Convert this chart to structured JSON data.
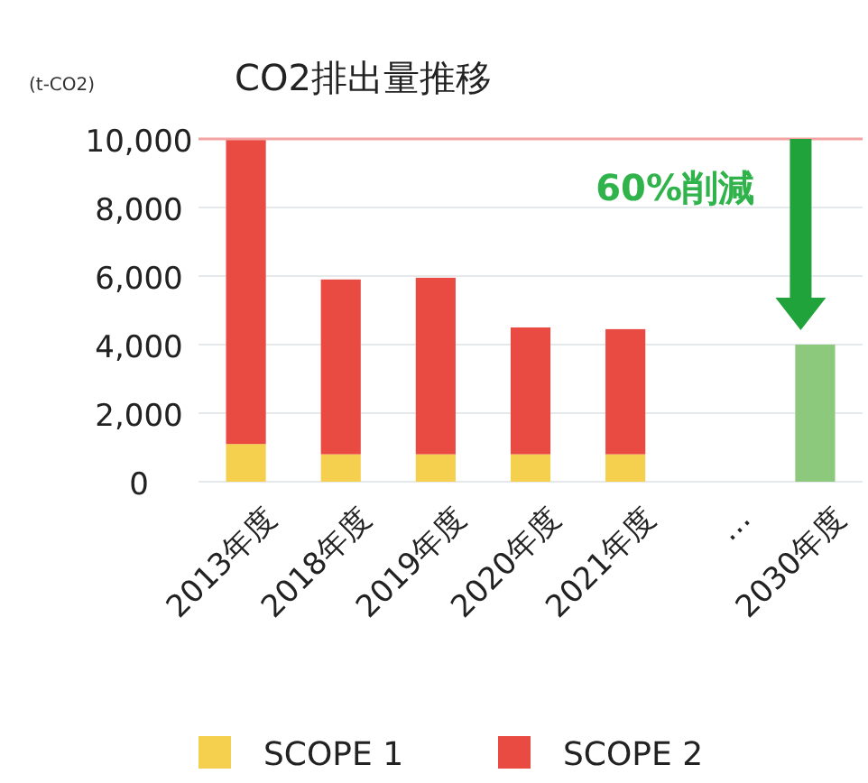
{
  "chart_data": {
    "type": "bar",
    "title": "CO2排出量推移",
    "ylabel": "(t-CO2)",
    "categories": [
      "2013年度",
      "2018年度",
      "2019年度",
      "2020年度",
      "2021年度",
      "…",
      "2030年度"
    ],
    "series": [
      {
        "name": "SCOPE 1",
        "color": "#f5cf4e",
        "values": [
          1100,
          800,
          800,
          800,
          800,
          null,
          null
        ]
      },
      {
        "name": "SCOPE 2",
        "color": "#e94b43",
        "values": [
          8900,
          5100,
          5150,
          3700,
          3650,
          null,
          null
        ]
      },
      {
        "color": "#8cc97c",
        "values": [
          null,
          null,
          null,
          null,
          null,
          null,
          4000
        ]
      }
    ],
    "stacked": true,
    "ylim": [
      0,
      10000
    ],
    "yticks": [
      0,
      {
        "value": 2000,
        "label": "2,000"
      },
      {
        "value": 4000,
        "label": "4,000"
      },
      {
        "value": 6000,
        "label": "6,000"
      },
      {
        "value": 8000,
        "label": "8,000"
      },
      {
        "value": 10000,
        "label": "10,000"
      }
    ],
    "grid": "y",
    "legend": "bottom",
    "ref_lines": [
      {
        "axis": "y",
        "value": 10000,
        "color": "#f4a3a3"
      }
    ],
    "annotations": [
      "60%削減"
    ]
  }
}
